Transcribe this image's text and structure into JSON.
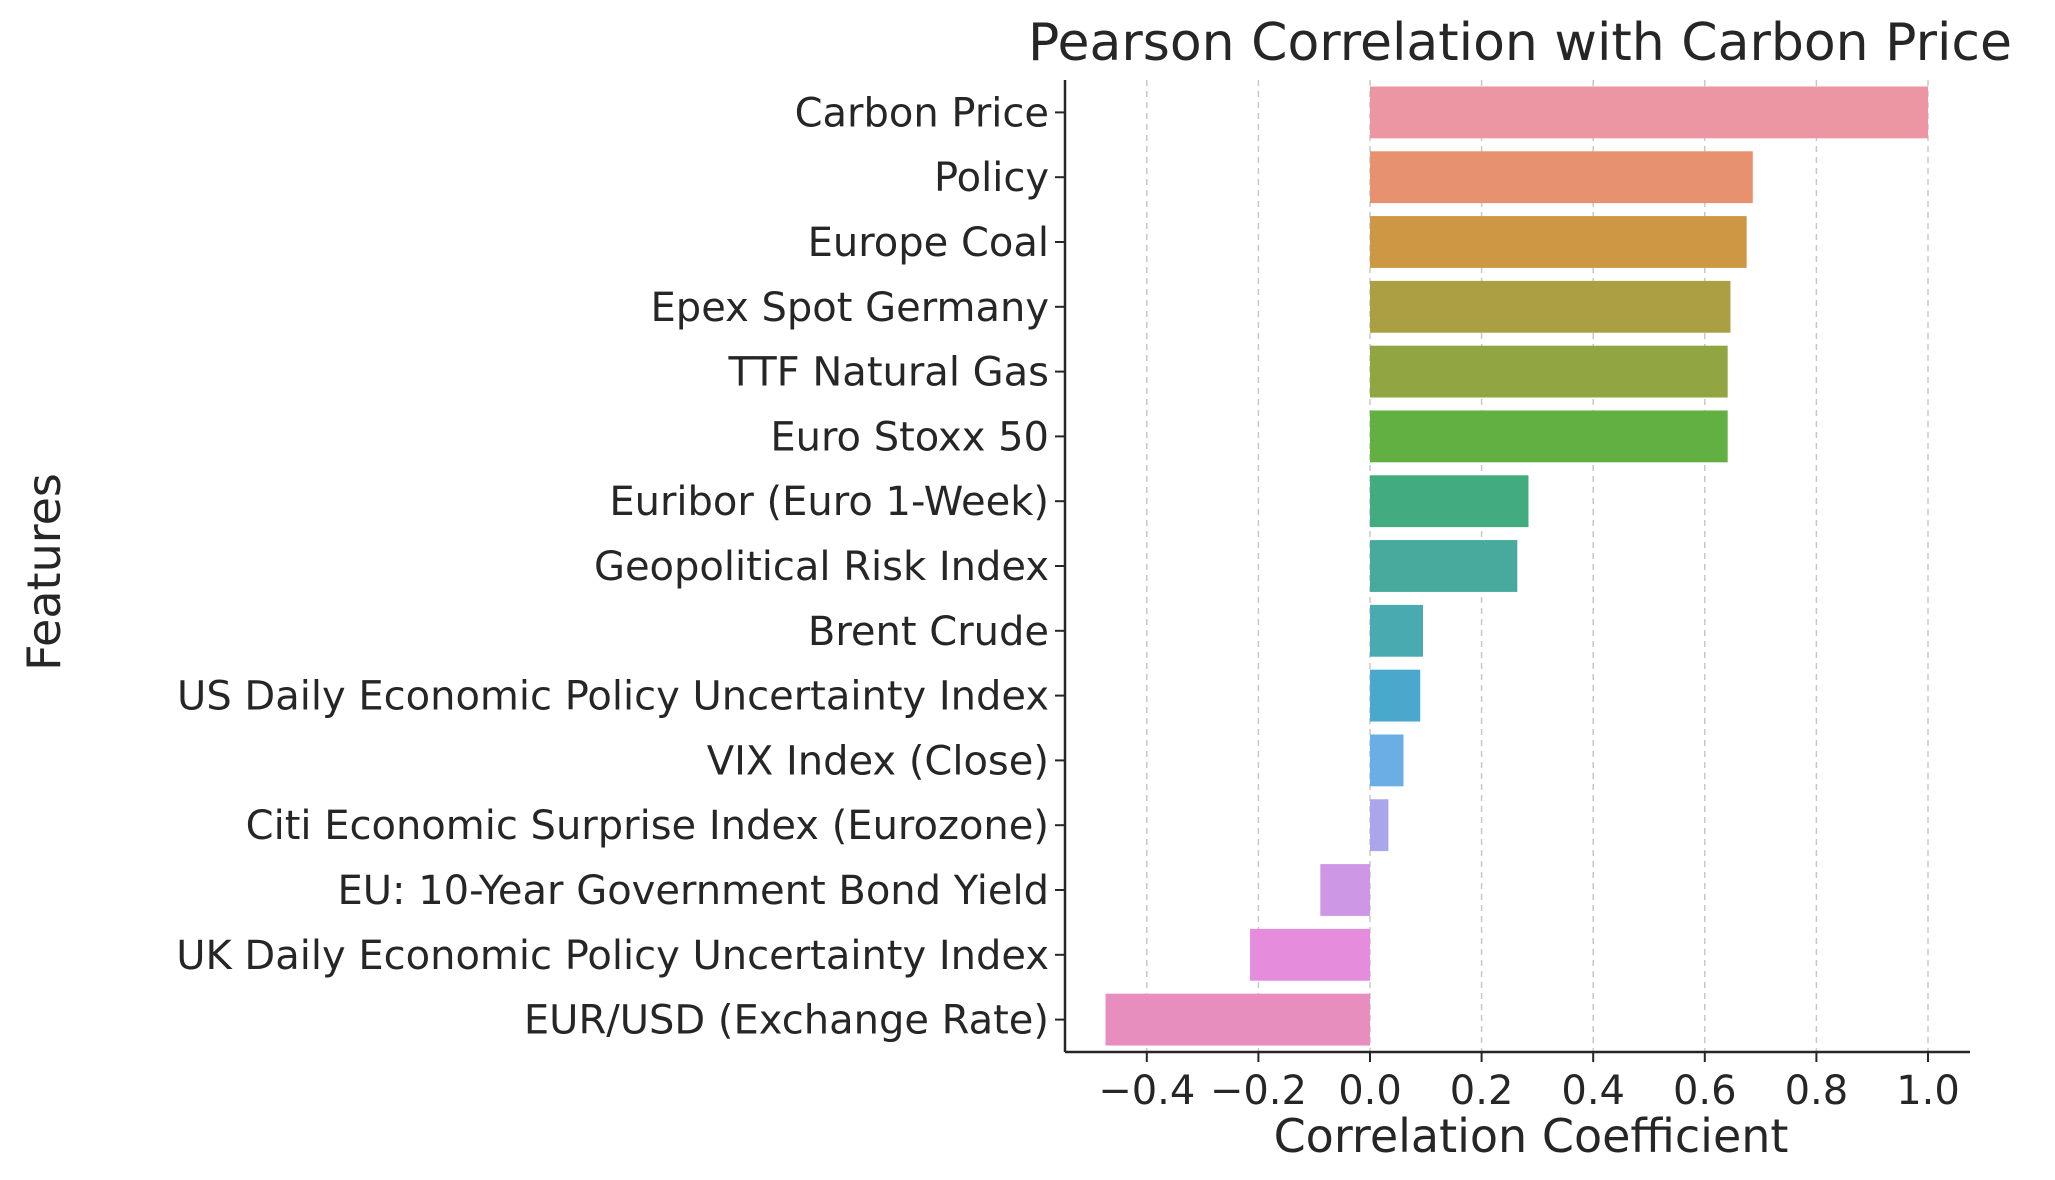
{
  "chart_data": {
    "type": "bar",
    "orientation": "horizontal",
    "title": "Pearson Correlation with Carbon Price",
    "xlabel": "Correlation Coefficient",
    "ylabel": "Features",
    "xlim": [
      -0.54,
      1.08
    ],
    "xticks": [
      -0.4,
      -0.2,
      0.0,
      0.2,
      0.4,
      0.6,
      0.8,
      1.0
    ],
    "xtick_labels": [
      "−0.4",
      "−0.2",
      "0.0",
      "0.2",
      "0.4",
      "0.6",
      "0.8",
      "1.0"
    ],
    "grid": "x-dashed",
    "categories": [
      "Carbon Price",
      "Policy",
      "Europe Coal",
      "Epex Spot Germany",
      "TTF Natural Gas",
      "Euro Stoxx 50",
      "Euribor (Euro 1-Week)",
      "Geopolitical Risk Index",
      "Brent Crude",
      "US Daily Economic Policy Uncertainty Index",
      "VIX Index (Close)",
      "Citi Economic Surprise Index (Eurozone)",
      "EU: 10-Year Government Bond Yield",
      "UK Daily Economic Policy Uncertainty Index",
      "EUR/USD (Exchange Rate)"
    ],
    "values": [
      1.0,
      0.686,
      0.675,
      0.646,
      0.641,
      0.641,
      0.284,
      0.264,
      0.095,
      0.09,
      0.06,
      0.033,
      -0.089,
      -0.215,
      -0.474
    ],
    "colors": [
      "#ec96a4",
      "#e8916f",
      "#cd9744",
      "#aa9f42",
      "#91a642",
      "#62b041",
      "#43ac7f",
      "#47aa9d",
      "#49aab0",
      "#4aa8cc",
      "#6baee6",
      "#a9a6ec",
      "#cd97e6",
      "#e68cdd",
      "#e88ebf"
    ]
  }
}
